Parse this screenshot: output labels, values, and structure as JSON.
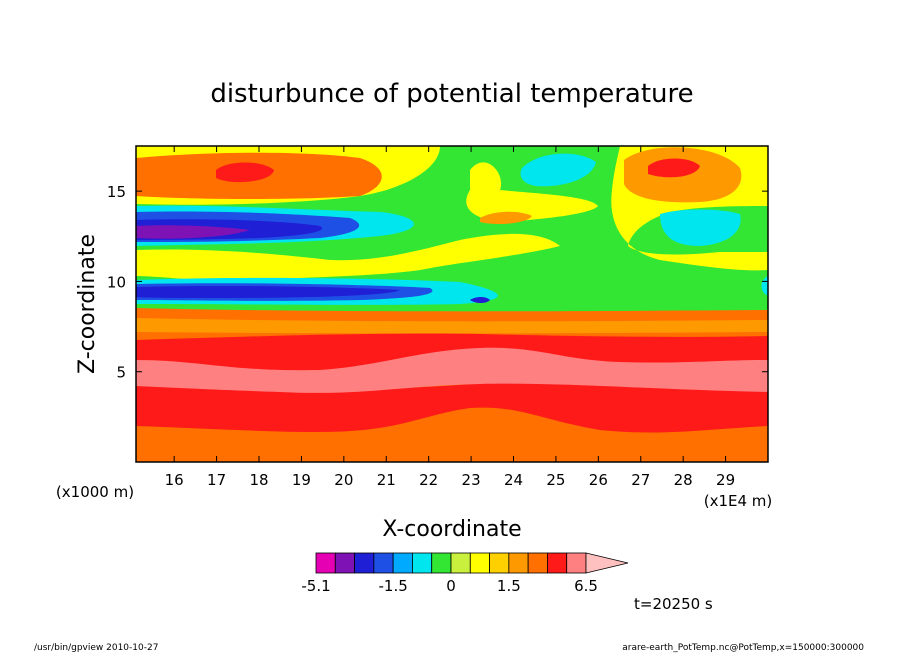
{
  "chart_data": {
    "type": "heatmap",
    "title": "disturbunce of potential temperature",
    "xlabel": "X-coordinate",
    "ylabel": "Z-coordinate",
    "x_unit": "(x1E4 m)",
    "y_unit": "(x1000 m)",
    "x_ticks": [
      16,
      17,
      18,
      19,
      20,
      21,
      22,
      23,
      24,
      25,
      26,
      27,
      28,
      29
    ],
    "y_ticks": [
      5,
      10,
      15
    ],
    "xlim": [
      15.1,
      30
    ],
    "ylim": [
      0,
      17.5
    ],
    "grid": false,
    "colorbar": {
      "tick_labels": [
        "-5.1",
        "-1.5",
        "0",
        "1.5",
        "6.5"
      ],
      "tick_values": [
        -5.1,
        -1.5,
        0,
        1.5,
        6.5
      ],
      "levels": [
        -5.1,
        -3.9,
        -2.7,
        -2.1,
        -1.5,
        -1.0,
        -0.5,
        0,
        0.5,
        1.0,
        1.5,
        2.7,
        3.9,
        5.2,
        6.5
      ],
      "colors": [
        "#e600b4",
        "#7f12b5",
        "#1f1fd6",
        "#1e50e6",
        "#00aaff",
        "#00e6ee",
        "#33e633",
        "#c8f03c",
        "#ffff00",
        "#ffd000",
        "#ff9900",
        "#ff7000",
        "#ff1a1a",
        "#ff8080"
      ],
      "arrow_color": "#ffc0c0"
    },
    "annotation": "t=20250 s"
  },
  "footer": {
    "left": "/usr/bin/gpview   2010-10-27",
    "right": "arare-earth_PotTemp.nc@PotTemp,x=150000:300000"
  }
}
